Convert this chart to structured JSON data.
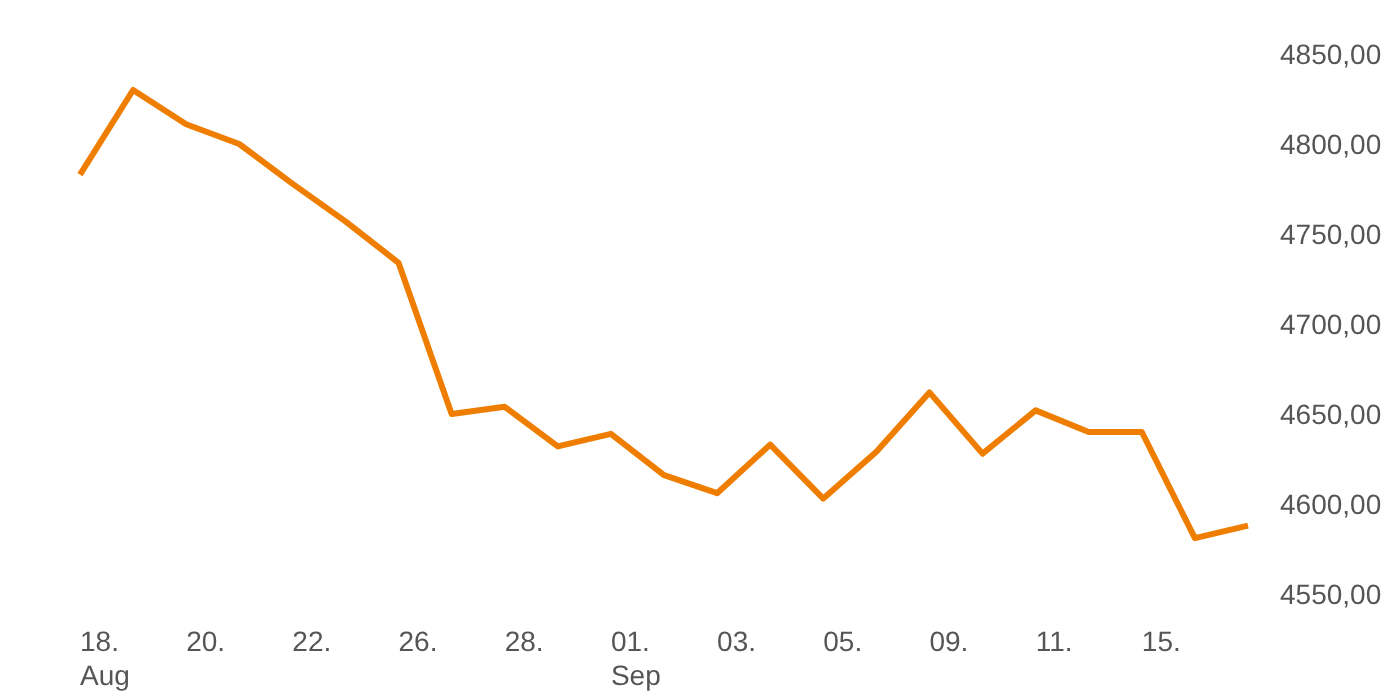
{
  "chart_data": {
    "type": "line",
    "categories": [
      "18.\nAug",
      null,
      "20.",
      null,
      "22.",
      null,
      "26.",
      null,
      "28.",
      null,
      "01.\nSep",
      null,
      "03.",
      null,
      "05.",
      null,
      "09.",
      null,
      "11.",
      null,
      "15.",
      null,
      null
    ],
    "series": [
      {
        "color": "#ef7d00",
        "values": [
          4783,
          4830,
          4811,
          4800,
          4778,
          4757,
          4734,
          4650,
          4654,
          4632,
          4639,
          4616,
          4606,
          4633,
          4603,
          4629,
          4662,
          4628,
          4652,
          4640,
          4640,
          4581,
          4588
        ]
      }
    ],
    "ylim": [
      4550,
      4850
    ],
    "yticks": [
      {
        "value": 4550,
        "label": "4550,00"
      },
      {
        "value": 4600,
        "label": "4600,00"
      },
      {
        "value": 4650,
        "label": "4650,00"
      },
      {
        "value": 4700,
        "label": "4700,00"
      },
      {
        "value": 4750,
        "label": "4750,00"
      },
      {
        "value": 4800,
        "label": "4800,00"
      },
      {
        "value": 4850,
        "label": "4850,00"
      }
    ],
    "grid": false,
    "marker": "none",
    "line_style": "solid"
  }
}
